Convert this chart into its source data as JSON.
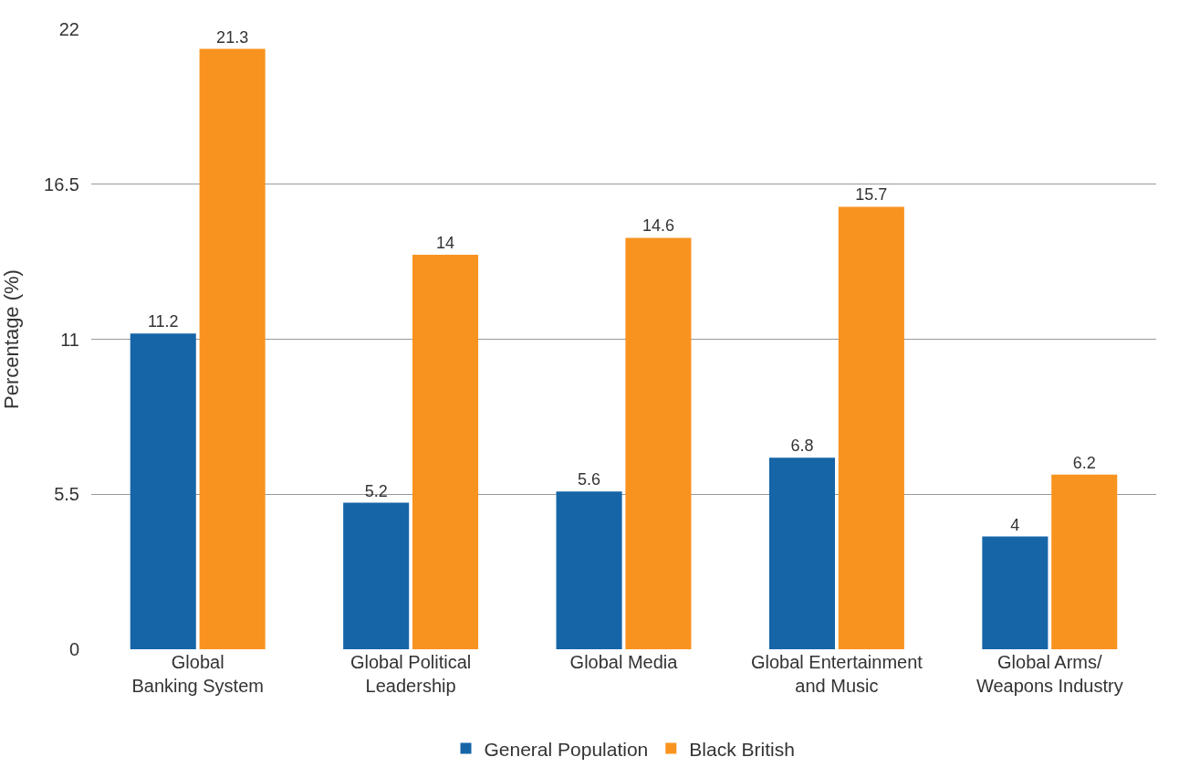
{
  "chart_data": {
    "type": "bar",
    "ylabel": "Percentage (%)",
    "categories": [
      "Global Banking System",
      "Global Political Leadership",
      "Global Media",
      "Global Entertainment and Music",
      "Global Arms/Weapons Industry"
    ],
    "series": [
      {
        "name": "General Population",
        "color": "#1565a7",
        "values": [
          11.2,
          5.2,
          5.6,
          6.8,
          4
        ]
      },
      {
        "name": "Black British",
        "color": "#f7931e",
        "values": [
          21.3,
          14,
          14.6,
          15.7,
          6.2
        ]
      }
    ],
    "ylim": [
      0,
      22
    ],
    "yticks": [
      0,
      5.5,
      11,
      16.5,
      22
    ],
    "grid": "y",
    "legend": "bottom",
    "data_labels": true
  }
}
